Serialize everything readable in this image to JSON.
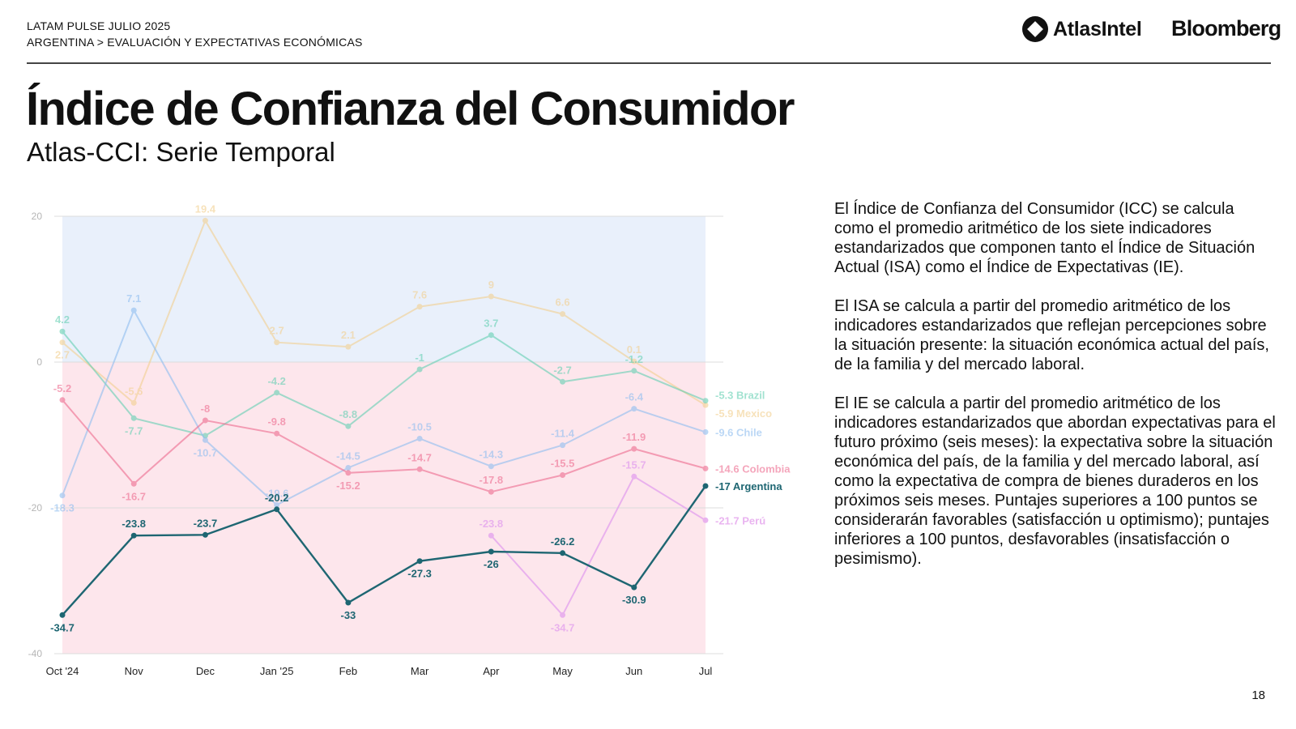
{
  "header": {
    "line1": "LATAM PULSE JULIO 2025",
    "line2": "ARGENTINA > EVALUACIÓN Y EXPECTATIVAS ECONÓMICAS"
  },
  "brands": {
    "atlas": "AtlasIntel",
    "atlas_icon": "atlasintel-logo-icon",
    "bloomberg": "Bloomberg"
  },
  "title": "Índice de Confianza del Consumidor",
  "subtitle": "Atlas-CCI: Serie Temporal",
  "description": [
    "El Índice de Confianza del Consumidor (ICC) se calcula como el promedio aritmético de los siete indicadores estandarizados que componen tanto el Índice de Situación Actual (ISA) como el Índice de Expectativas (IE).",
    "El ISA se calcula a partir del promedio aritmético de los indicadores estandarizados que reflejan percepciones sobre la situación presente: la situación económica actual del país, de la familia y del mercado laboral.",
    "El IE se calcula a partir del promedio aritmético de los indicadores estandarizados que abordan expectativas para el futuro próximo (seis meses): la expectativa sobre la situación económica del país, de la familia y del mercado laboral, así como la expectativa de compra de bienes duraderos en los próximos seis meses. Puntajes superiores a 100 puntos se considerarán favorables (satisfacción u optimismo); puntajes inferiores a 100 puntos, desfavorables (insatisfacción o pesimismo)."
  ],
  "page_number": "18",
  "chart_data": {
    "type": "line",
    "categories": [
      "Oct '24",
      "Nov",
      "Dec",
      "Jan '25",
      "Feb",
      "Mar",
      "Apr",
      "May",
      "Jun",
      "Jul"
    ],
    "ylim": [
      -40,
      20
    ],
    "yticks": [
      "20",
      "0",
      "-20",
      "-40"
    ],
    "grid": true,
    "background_bands": [
      {
        "from": 0,
        "to": 20,
        "color": "#e9f0fb"
      },
      {
        "from": -40,
        "to": 0,
        "color": "#fde6ec"
      }
    ],
    "series": [
      {
        "name": "Mexico",
        "color": "#f2cf8f",
        "opacity": 0.6,
        "values": [
          2.7,
          -5.6,
          19.4,
          2.7,
          2.1,
          7.6,
          9,
          6.6,
          0.1,
          -5.9
        ],
        "labels": [
          "2.7",
          "-5.6",
          "19.4",
          "2.7",
          "2.1",
          "7.6",
          "9",
          "6.6",
          "0.1",
          "-5.9"
        ]
      },
      {
        "name": "Brazil",
        "color": "#63cfb2",
        "opacity": 0.6,
        "values": [
          4.2,
          -7.7,
          -10.1,
          -4.2,
          -8.8,
          -1,
          3.7,
          -2.7,
          -1.2,
          -5.3
        ],
        "labels": [
          "4.2",
          "-7.7",
          "",
          "-4.2",
          "-8.8",
          "-1",
          "3.7",
          "-2.7",
          "-1.2",
          "-5.3"
        ]
      },
      {
        "name": "Chile",
        "color": "#8ebdf0",
        "opacity": 0.6,
        "values": [
          -18.3,
          7.1,
          -10.7,
          -19.6,
          -14.5,
          -10.5,
          -14.3,
          -11.4,
          -6.4,
          -9.6
        ],
        "labels": [
          "-18.3",
          "7.1",
          "-10.7",
          "-19.6",
          "-14.5",
          "-10.5",
          "-14.3",
          "-11.4",
          "-6.4",
          "-9.6"
        ]
      },
      {
        "name": "Colombia",
        "color": "#ee6a8e",
        "opacity": 0.6,
        "values": [
          -5.2,
          -16.7,
          -8,
          -9.8,
          -15.2,
          -14.7,
          -17.8,
          -15.5,
          -11.9,
          -14.6
        ],
        "labels": [
          "-5.2",
          "-16.7",
          "-8",
          "-9.8",
          "-15.2",
          "-14.7",
          "-17.8",
          "-15.5",
          "-11.9",
          "-14.6"
        ]
      },
      {
        "name": "Perú",
        "color": "#e6a8ee",
        "opacity": 0.85,
        "values": [
          null,
          null,
          null,
          null,
          null,
          null,
          -23.8,
          -34.7,
          -15.7,
          -21.7
        ],
        "labels": [
          "",
          "",
          "",
          "",
          "",
          "",
          "-23.8",
          "-34.7",
          "-15.7",
          "-21.7"
        ]
      },
      {
        "name": "Argentina",
        "color": "#1e6672",
        "opacity": 1,
        "values": [
          -34.7,
          -23.8,
          -23.7,
          -20.2,
          -33,
          -27.3,
          -26,
          -26.2,
          -30.9,
          -17
        ],
        "labels": [
          "-34.7",
          "-23.8",
          "-23.7",
          "-20.2",
          "-33",
          "-27.3",
          "-26",
          "-26.2",
          "-30.9",
          "-17"
        ]
      }
    ]
  }
}
